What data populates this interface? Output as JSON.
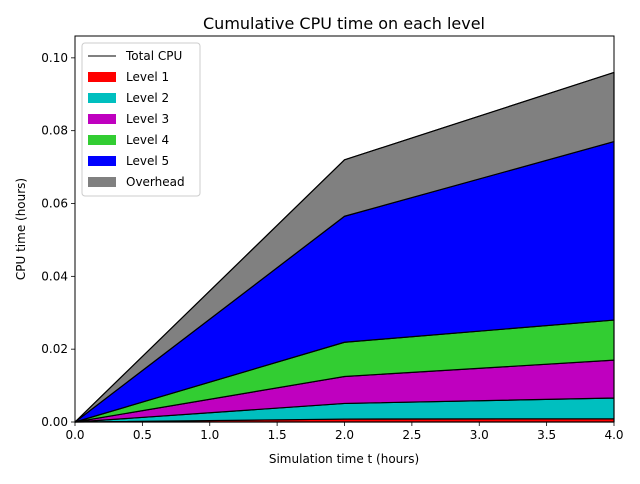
{
  "chart_data": {
    "type": "area",
    "stacked": true,
    "title": "Cumulative CPU time on each level",
    "xlabel": "Simulation time t (hours)",
    "ylabel": "CPU time (hours)",
    "xlim": [
      0.0,
      4.0
    ],
    "ylim": [
      0.0,
      0.106
    ],
    "x_ticks": [
      "0.0",
      "0.5",
      "1.0",
      "1.5",
      "2.0",
      "2.5",
      "3.0",
      "3.5",
      "4.0"
    ],
    "x_tick_values": [
      0.0,
      0.5,
      1.0,
      1.5,
      2.0,
      2.5,
      3.0,
      3.5,
      4.0
    ],
    "y_ticks": [
      "0.00",
      "0.02",
      "0.04",
      "0.06",
      "0.08",
      "0.10"
    ],
    "y_tick_values": [
      0.0,
      0.02,
      0.04,
      0.06,
      0.08,
      0.1
    ],
    "grid": false,
    "legend_position": "top-left",
    "x": [
      0.0,
      2.0,
      4.0
    ],
    "series": [
      {
        "name": "Level 1",
        "color": "#ff0000",
        "values": [
          0.0,
          0.0008,
          0.0009
        ]
      },
      {
        "name": "Level 2",
        "color": "#00bfbf",
        "values": [
          0.0,
          0.0043,
          0.0057
        ]
      },
      {
        "name": "Level 3",
        "color": "#bf00bf",
        "values": [
          0.0,
          0.0074,
          0.0104
        ]
      },
      {
        "name": "Level 4",
        "color": "#32cd32",
        "values": [
          0.0,
          0.0094,
          0.011
        ]
      },
      {
        "name": "Level 5",
        "color": "#0000ff",
        "values": [
          0.0,
          0.0346,
          0.049
        ]
      },
      {
        "name": "Overhead",
        "color": "#808080",
        "values": [
          0.0,
          0.0155,
          0.019
        ]
      }
    ],
    "total_cpu": {
      "name": "Total CPU",
      "color": "#000000",
      "values": [
        0.0,
        0.072,
        0.096
      ]
    }
  }
}
